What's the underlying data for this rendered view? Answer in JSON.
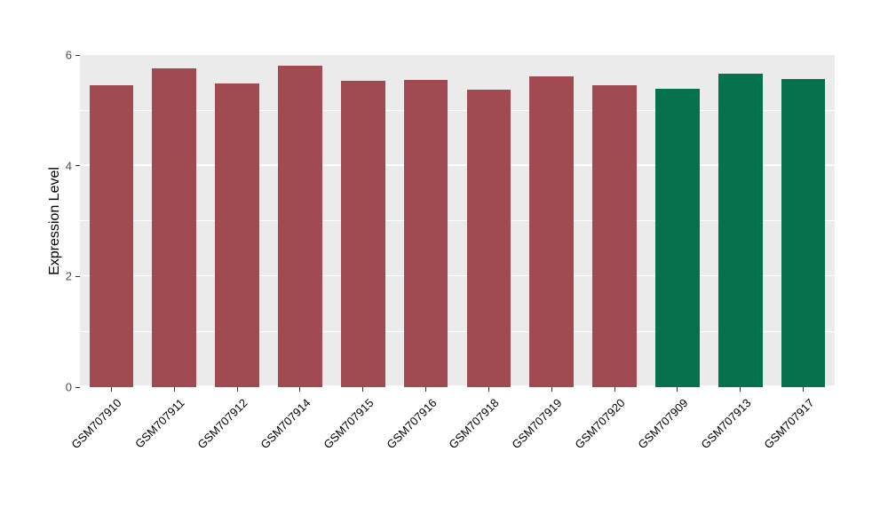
{
  "chart_data": {
    "type": "bar",
    "title": "",
    "xlabel": "",
    "ylabel": "Expression Level",
    "ylim": [
      0,
      6
    ],
    "yticks": [
      0,
      2,
      4,
      6
    ],
    "yticks_minor": [
      1,
      3,
      5
    ],
    "grid": true,
    "legend": false,
    "categories": [
      "GSM707910",
      "GSM707911",
      "GSM707912",
      "GSM707914",
      "GSM707915",
      "GSM707916",
      "GSM707918",
      "GSM707919",
      "GSM707920",
      "GSM707909",
      "GSM707913",
      "GSM707917"
    ],
    "values": [
      5.46,
      5.76,
      5.48,
      5.81,
      5.53,
      5.55,
      5.37,
      5.61,
      5.46,
      5.39,
      5.67,
      5.57
    ],
    "bar_colors": [
      "#A24A52",
      "#A24A52",
      "#A24A52",
      "#A24A52",
      "#A24A52",
      "#A24A52",
      "#A24A52",
      "#A24A52",
      "#A24A52",
      "#06714D",
      "#06714D",
      "#06714D"
    ],
    "groups": [
      {
        "name": "group-red",
        "color": "#A24A52",
        "categories": [
          "GSM707910",
          "GSM707911",
          "GSM707912",
          "GSM707914",
          "GSM707915",
          "GSM707916",
          "GSM707918",
          "GSM707919",
          "GSM707920"
        ]
      },
      {
        "name": "group-green",
        "color": "#06714D",
        "categories": [
          "GSM707909",
          "GSM707913",
          "GSM707917"
        ]
      }
    ],
    "panel_background": "#EBEBEB",
    "grid_color": "#FFFFFF",
    "text_color": "#000000"
  }
}
